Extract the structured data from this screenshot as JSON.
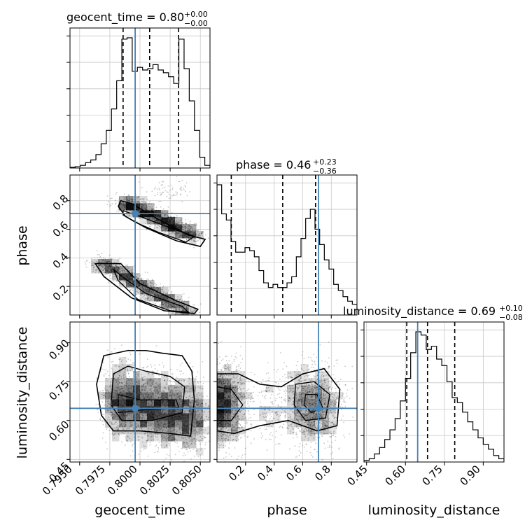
{
  "chart_data": {
    "type": "corner",
    "parameters": [
      "geocent_time",
      "phase",
      "luminosity_distance"
    ],
    "truth": {
      "geocent_time": 0.7996,
      "phase": 0.71,
      "luminosity_distance": 0.647
    },
    "titles": {
      "geocent_time": {
        "text": "geocent_time = 0.80",
        "plus": "+0.00",
        "minus": "−0.00"
      },
      "phase": {
        "text": "phase = 0.46",
        "plus": "+0.23",
        "minus": "−0.36"
      },
      "luminosity_distance": {
        "text": "luminosity_distance = 0.69",
        "plus": "+0.10",
        "minus": "−0.08"
      }
    },
    "axis_labels": {
      "x": [
        "geocent_time",
        "phase",
        "luminosity_distance"
      ],
      "y": [
        "phase",
        "luminosity_distance"
      ]
    },
    "ranges": {
      "geocent_time": [
        0.7942,
        0.8058
      ],
      "phase": [
        0.0,
        0.98
      ],
      "luminosity_distance": [
        0.44,
        0.98
      ]
    },
    "ticks": {
      "geocent_time": [
        "0.7950",
        "0.7975",
        "0.8000",
        "0.8025",
        "0.8050"
      ],
      "phase_x": [
        "0.2",
        "0.4",
        "0.6",
        "0.8"
      ],
      "phase_y": [
        "0.2",
        "0.4",
        "0.6",
        "0.8"
      ],
      "luminosity_distance": [
        "0.45",
        "0.60",
        "0.75",
        "0.90"
      ]
    },
    "quantiles": {
      "geocent_time": [
        0.7986,
        0.8008,
        0.8032
      ],
      "phase": [
        0.1,
        0.46,
        0.69
      ],
      "luminosity_distance": [
        0.605,
        0.685,
        0.79
      ]
    },
    "histograms": {
      "geocent_time": {
        "lo": 0.7942,
        "hi": 0.8058,
        "counts": [
          0.5,
          1,
          2,
          4,
          6,
          10,
          18,
          28,
          44,
          65,
          96,
          97,
          72,
          75,
          73,
          74,
          77,
          73,
          71,
          68,
          63,
          96,
          74,
          50,
          28,
          8,
          2
        ]
      },
      "phase": {
        "lo": 0.0,
        "hi": 0.98,
        "counts": [
          85,
          66,
          62,
          48,
          41,
          41,
          44,
          42,
          38,
          29,
          21,
          18,
          20,
          18,
          18,
          21,
          25,
          38,
          50,
          63,
          69,
          56,
          46,
          36,
          30,
          20,
          16,
          12,
          9,
          7
        ]
      },
      "luminosity_distance": {
        "lo": 0.44,
        "hi": 0.98,
        "counts": [
          1,
          2,
          5,
          9,
          14,
          20,
          27,
          38,
          52,
          68,
          81,
          79,
          70,
          72,
          64,
          60,
          50,
          40,
          37,
          31,
          25,
          20,
          15,
          11,
          8,
          4,
          2
        ]
      }
    }
  }
}
